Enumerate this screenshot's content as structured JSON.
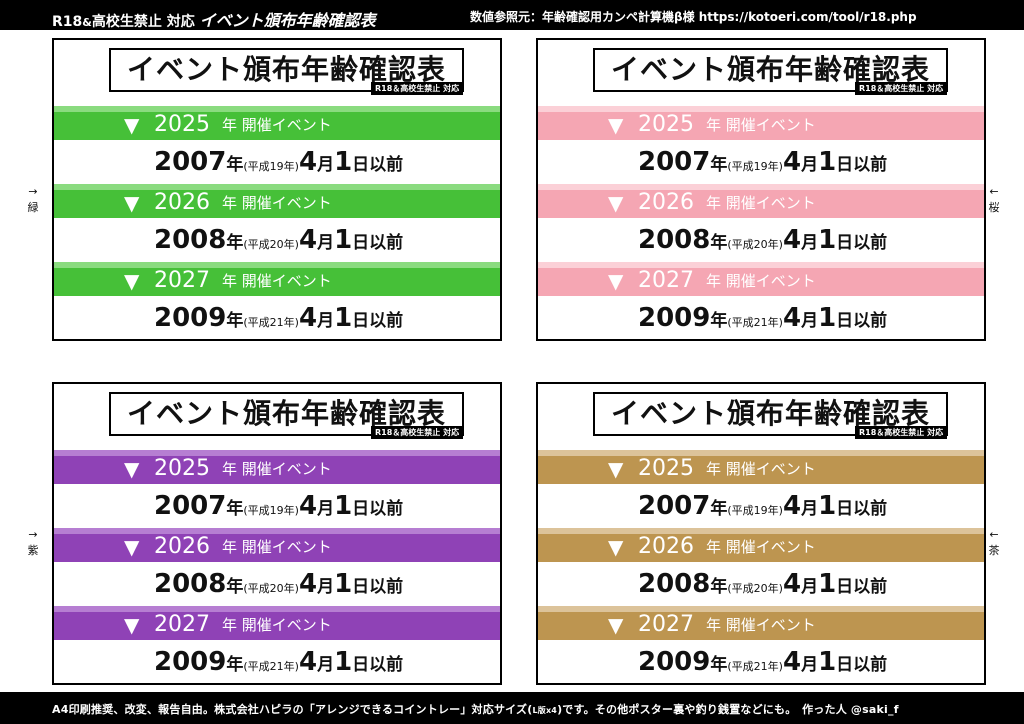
{
  "header": {
    "left_prefix": "R18",
    "left_amp": "&",
    "left_mid": "高校生禁止 対応",
    "left_title": "イベント頒布年齢確認表",
    "right_text": "数値参照元：年齢確認用カンペ計算機β様 https://kotoeri.com/tool/r18.php"
  },
  "footer": {
    "text_a": "A4印刷推奨、改変、報告自由。株式会社ハピラの「アレンジできるコイントレー」対応サイズ(",
    "text_small": "L版x4",
    "text_b": ")です。その他ポスター裏や釣り銭置などにも。　作った人 @saki_f"
  },
  "panel_common": {
    "title": "イベント頒布年齢確認表",
    "subtitle": "R18＆高校生禁止 対応",
    "triangle": "▼",
    "event_label": "年 開催イベント",
    "rows": [
      {
        "event_year": "2025",
        "birth_year": "2007",
        "era": "(平成19年)",
        "month": "4",
        "day": "1"
      },
      {
        "event_year": "2026",
        "birth_year": "2008",
        "era": "(平成20年)",
        "month": "4",
        "day": "1"
      },
      {
        "event_year": "2027",
        "birth_year": "2009",
        "era": "(平成21年)",
        "month": "4",
        "day": "1"
      }
    ],
    "unit_year": "年",
    "unit_month": "月",
    "unit_day": "日",
    "suffix": "以前"
  },
  "panels": [
    {
      "color_main": "#46c038",
      "color_stripe": "#8adb7f"
    },
    {
      "color_main": "#f5a6b3",
      "color_stripe": "#fbd0d7"
    },
    {
      "color_main": "#8f42b6",
      "color_stripe": "#b67ed2"
    },
    {
      "color_main": "#bd9550",
      "color_stripe": "#dcc39a"
    }
  ],
  "side_labels": {
    "green": {
      "arrow": "→",
      "label": "緑"
    },
    "sakura": {
      "arrow": "←",
      "label": "桜"
    },
    "purple": {
      "arrow": "→",
      "label": "紫"
    },
    "brown": {
      "arrow": "←",
      "label": "茶"
    }
  }
}
